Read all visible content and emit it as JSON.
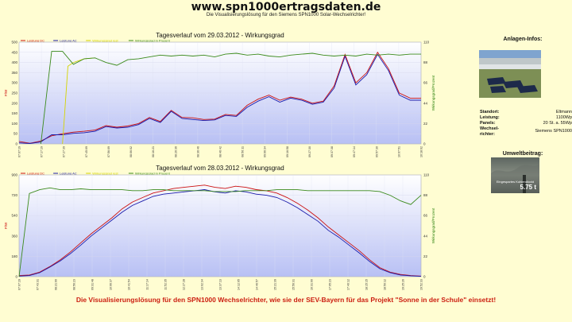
{
  "header": {
    "title": "www.spn1000ertragsdaten.de",
    "subtitle": "Die Visualisierungslösung für den Siemens SPN1000 Solar-Wechselrichter!"
  },
  "sidebar": {
    "plant_info_title": "Anlagen-Infos:",
    "info": [
      {
        "label": "Standort:",
        "value": "Eltmann"
      },
      {
        "label": "Leistung:",
        "value": "1100Wp"
      },
      {
        "label": "Panels:",
        "value": "20 St. a. 55Wp"
      },
      {
        "label": "Wechsel-richter:",
        "value": "Siemens SPN1000"
      }
    ],
    "env_title": "Umweltbeitrag:",
    "env_label": "Eingespartes Kohlendioxid",
    "env_value": "5.75 t"
  },
  "footer": "Die Visualisierungslösung für den SPN1000 Wechselrichter, wie sie der SEV-Bayern für das Projekt \"Sonne in der Schule\" einsetzt!",
  "colors": {
    "dc": "#cc1111",
    "ac": "#1a1aaa",
    "target": "#d4d400",
    "eff": "#3a8a1a",
    "plot_top": "#ffffff",
    "plot_bottom": "#b8c0f4"
  },
  "chart_data": [
    {
      "type": "line",
      "title": "Tagesverlauf vom 29.03.2012 - Wirkungsgrad",
      "legend": [
        "Leistung DC",
        "Leistung AC",
        "Wirkungsgrad rest",
        "Wirkungsgrad in Prozent"
      ],
      "ylabel_left": "P/W",
      "ylabel_right": "Wirkungsgrad/Prozent",
      "yticks_left": [
        "0",
        "50",
        "100",
        "150",
        "200",
        "250",
        "300",
        "350",
        "400",
        "450",
        "500"
      ],
      "yticks_right": [
        "0",
        "22",
        "44",
        "66",
        "88",
        "110"
      ],
      "ylim_left": [
        0,
        500
      ],
      "ylim_right": [
        0,
        110
      ],
      "xticks": [
        "07:07:19",
        "07:17:19",
        "07:27:39",
        "07:45:09",
        "07:56:09",
        "08:06:02",
        "08:16:21",
        "08:26:36",
        "08:36:46",
        "08:46:42",
        "08:56:11",
        "09:06:34",
        "09:16:58",
        "09:27:30",
        "09:37:38",
        "09:47:14",
        "09:57:30",
        "10:07:51",
        "10:18:02"
      ],
      "series": [
        {
          "name": "Leistung DC",
          "color": "#cc1111",
          "axis": "left",
          "values": [
            12,
            3,
            14,
            40,
            50,
            58,
            62,
            68,
            90,
            82,
            88,
            100,
            130,
            110,
            165,
            130,
            128,
            120,
            122,
            145,
            140,
            190,
            220,
            240,
            215,
            230,
            220,
            200,
            210,
            285,
            440,
            300,
            350,
            450,
            370,
            250,
            225,
            225
          ]
        },
        {
          "name": "Leistung AC",
          "color": "#1a1aaa",
          "axis": "left",
          "values": [
            5,
            2,
            10,
            45,
            45,
            52,
            55,
            62,
            85,
            78,
            82,
            95,
            125,
            105,
            160,
            125,
            120,
            115,
            118,
            140,
            135,
            180,
            210,
            232,
            205,
            225,
            215,
            195,
            205,
            275,
            430,
            290,
            340,
            440,
            360,
            240,
            215,
            215
          ]
        },
        {
          "name": "Wirkungsgrad rest",
          "color": "#d4d400",
          "axis": "right",
          "values": [
            null,
            null,
            null,
            null,
            null,
            null,
            null,
            null,
            null,
            null,
            null,
            null,
            null,
            null,
            null,
            null,
            null,
            null,
            null,
            null,
            null,
            null,
            null,
            null,
            null,
            null,
            null,
            null,
            null,
            null,
            null,
            null,
            null,
            null,
            null,
            null,
            null,
            null
          ],
          "special": [
            [
              4,
              0
            ],
            [
              4.5,
              84
            ],
            [
              5,
              88
            ],
            [
              6,
              92
            ],
            [
              7,
              93
            ]
          ]
        },
        {
          "name": "Wirkungsgrad in Prozent",
          "color": "#3a8a1a",
          "axis": "right",
          "values": [
            null,
            null,
            0,
            100,
            100,
            86,
            92,
            93,
            88,
            85,
            91,
            92,
            94,
            96,
            95,
            96,
            95,
            96,
            94,
            97,
            98,
            96,
            97,
            95,
            94,
            96,
            97,
            98,
            96,
            95,
            96,
            95,
            97,
            96,
            97,
            96,
            97,
            97
          ]
        }
      ]
    },
    {
      "type": "line",
      "title": "Tagesverlauf vom 28.03.2012 - Wirkungsgrad",
      "legend": [
        "Leistung DC",
        "Leistung AC",
        "Wirkungsgrad rest",
        "Wirkungsgrad in Prozent"
      ],
      "ylabel_left": "P/W",
      "ylabel_right": "Wirkungsgrad/Prozent",
      "yticks_left": [
        "0",
        "180",
        "360",
        "540",
        "720",
        "900"
      ],
      "yticks_right": [
        "0",
        "22",
        "44",
        "66",
        "88",
        "110"
      ],
      "ylim_left": [
        0,
        900
      ],
      "ylim_right": [
        0,
        110
      ],
      "xticks": [
        "07:07:19",
        "07:43:31",
        "08:21:00",
        "08:56:23",
        "09:31:48",
        "10:06:37",
        "10:41:54",
        "11:17:14",
        "11:52:35",
        "12:27:28",
        "13:02:34",
        "13:37:13",
        "14:12:05",
        "14:46:57",
        "15:21:39",
        "15:56:31",
        "16:31:00",
        "17:05:23",
        "17:40:12",
        "18:15:15",
        "18:50:12",
        "19:25:26",
        "19:52:33"
      ],
      "series": [
        {
          "name": "Leistung DC",
          "color": "#cc1111",
          "axis": "left",
          "values": [
            10,
            15,
            40,
            90,
            150,
            220,
            300,
            380,
            450,
            520,
            600,
            660,
            700,
            740,
            760,
            780,
            790,
            800,
            810,
            790,
            780,
            800,
            790,
            770,
            760,
            740,
            700,
            650,
            590,
            520,
            440,
            370,
            300,
            230,
            150,
            80,
            40,
            20,
            10,
            5
          ]
        },
        {
          "name": "Leistung AC",
          "color": "#1a1aaa",
          "axis": "left",
          "values": [
            5,
            10,
            35,
            85,
            140,
            205,
            280,
            360,
            430,
            500,
            570,
            630,
            670,
            710,
            730,
            740,
            750,
            760,
            770,
            750,
            740,
            760,
            750,
            730,
            720,
            700,
            660,
            610,
            550,
            490,
            410,
            350,
            280,
            210,
            135,
            70,
            35,
            15,
            8,
            3
          ]
        },
        {
          "name": "Wirkungsgrad in Prozent",
          "color": "#3a8a1a",
          "axis": "right",
          "values": [
            0,
            90,
            94,
            96,
            94,
            94,
            95,
            94,
            94,
            94,
            94,
            93,
            93,
            94,
            94,
            93,
            93,
            93,
            93,
            92,
            92,
            92,
            93,
            93,
            93,
            94,
            94,
            94,
            93,
            93,
            93,
            93,
            93,
            93,
            93,
            92,
            88,
            82,
            78,
            88
          ]
        }
      ]
    }
  ]
}
